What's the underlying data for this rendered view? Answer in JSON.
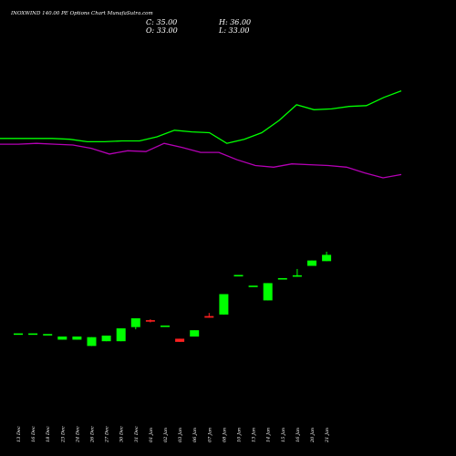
{
  "header": {
    "title": "INOXWIND 140.00  PE Options  Chart MunafaSutra.com",
    "close": "C: 35.00",
    "high": "H: 36.00",
    "open": "O: 33.00",
    "low": "L: 33.00"
  },
  "chart_data": {
    "type": "candlestick",
    "title": "INOXWIND 140.00  PE Options  Chart MunafaSutra.com",
    "xlabel": "",
    "ylabel": "",
    "grid": false,
    "colors": {
      "up": "#00ff00",
      "down": "#ff2020",
      "upper_line": "#00ff00",
      "lower_line": "#b400b4",
      "background": "#000000"
    },
    "categories": [
      "13 Dec",
      "16 Dec",
      "18 Dec",
      "23 Dec",
      "24 Dec",
      "26 Dec",
      "27 Dec",
      "30 Dec",
      "31 Dec",
      "01 Jan",
      "02 Jan",
      "03 Jan",
      "06 Jan",
      "07 Jan",
      "08 Jan",
      "10 Jan",
      "13 Jan",
      "14 Jan",
      "15 Jan",
      "16 Jan",
      "20 Jan",
      "21 Jan"
    ],
    "candles": [
      {
        "o": 10.0,
        "h": 10.0,
        "l": 10.0,
        "c": 10.0
      },
      {
        "o": 10.0,
        "h": 10.0,
        "l": 10.0,
        "c": 10.0
      },
      {
        "o": 9.8,
        "h": 9.8,
        "l": 9.8,
        "c": 9.8
      },
      {
        "o": 8.0,
        "h": 9.0,
        "l": 8.0,
        "c": 9.0
      },
      {
        "o": 8.0,
        "h": 9.0,
        "l": 8.0,
        "c": 9.0
      },
      {
        "o": 6.0,
        "h": 8.8,
        "l": 6.0,
        "c": 8.8
      },
      {
        "o": 7.5,
        "h": 9.3,
        "l": 7.5,
        "c": 9.3
      },
      {
        "o": 7.5,
        "h": 11.6,
        "l": 7.5,
        "c": 11.6
      },
      {
        "o": 12.0,
        "h": 14.8,
        "l": 11.3,
        "c": 14.8
      },
      {
        "o": 14.2,
        "h": 14.5,
        "l": 13.5,
        "c": 13.8
      },
      {
        "o": 12.5,
        "h": 12.5,
        "l": 12.5,
        "c": 12.5
      },
      {
        "o": 8.3,
        "h": 8.3,
        "l": 7.3,
        "c": 7.3
      },
      {
        "o": 9.0,
        "h": 11.0,
        "l": 9.0,
        "c": 11.0
      },
      {
        "o": 15.5,
        "h": 16.5,
        "l": 15.0,
        "c": 15.0
      },
      {
        "o": 16.0,
        "h": 22.5,
        "l": 16.0,
        "c": 22.5
      },
      {
        "o": 28.2,
        "h": 28.6,
        "l": 28.2,
        "c": 28.6
      },
      {
        "o": 25.2,
        "h": 25.2,
        "l": 25.2,
        "c": 25.2
      },
      {
        "o": 20.5,
        "h": 26.0,
        "l": 20.5,
        "c": 26.0
      },
      {
        "o": 27.6,
        "h": 27.6,
        "l": 27.6,
        "c": 27.6
      },
      {
        "o": 28.2,
        "h": 30.5,
        "l": 28.0,
        "c": 28.5
      },
      {
        "o": 31.5,
        "h": 33.2,
        "l": 31.5,
        "c": 33.2
      },
      {
        "o": 33.0,
        "h": 36.0,
        "l": 33.0,
        "c": 35.0
      }
    ],
    "upper_line": [
      59.8,
      59.8,
      59.8,
      59.8,
      59.7,
      59.4,
      59.4,
      59.5,
      59.5,
      60.0,
      60.8,
      60.6,
      60.5,
      59.2,
      59.7,
      60.5,
      62.0,
      63.9,
      63.3,
      63.4,
      63.7,
      63.8,
      64.8,
      65.6
    ],
    "lower_line": [
      59.1,
      59.1,
      59.2,
      59.1,
      59.0,
      58.6,
      57.9,
      58.3,
      58.2,
      59.2,
      58.7,
      58.1,
      58.1,
      57.2,
      56.5,
      56.3,
      56.7,
      56.6,
      56.5,
      56.3,
      55.6,
      55.0,
      55.4
    ],
    "line_scale": {
      "ymin": 50.0,
      "ymax": 70.0
    },
    "ylim": [
      0,
      45
    ]
  }
}
